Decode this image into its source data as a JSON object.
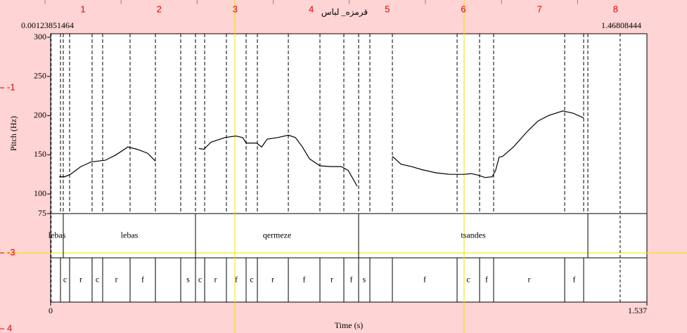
{
  "chart_data": {
    "type": "line",
    "title": "قرمزه_ لباس",
    "ruler": {
      "top": [
        1,
        2,
        3,
        4,
        5,
        6,
        7,
        8
      ],
      "left": [
        -1,
        -3,
        4
      ]
    },
    "selection": [
      0.00123851464,
      1.46808444
    ],
    "ylabel": "Pitch (Hz)",
    "xlabel": "Time (s)",
    "xlim": [
      0,
      1.537
    ],
    "xticks": [
      0,
      1.537
    ],
    "ylim": [
      75,
      300
    ],
    "yticks": [
      75,
      100,
      150,
      200,
      250,
      300
    ],
    "x": [
      0.022,
      0.036,
      0.051,
      0.078,
      0.105,
      0.141,
      0.169,
      0.199,
      0.223,
      0.25,
      0.27,
      null,
      0.382,
      0.395,
      0.413,
      0.449,
      0.477,
      0.495,
      0.504,
      0.531,
      0.544,
      0.558,
      0.585,
      0.613,
      0.631,
      0.649,
      0.667,
      0.694,
      0.721,
      0.749,
      0.767,
      0.79,
      null,
      0.881,
      0.903,
      0.93,
      0.957,
      0.993,
      1.03,
      1.066,
      1.084,
      1.102,
      1.12,
      1.138,
      1.147,
      1.156,
      1.165,
      1.193,
      1.229,
      1.256,
      1.283,
      1.32,
      1.347,
      1.374
    ],
    "values": [
      122,
      122,
      125,
      135,
      141,
      143,
      150,
      160,
      157,
      152,
      142,
      null,
      158,
      157,
      166,
      172,
      174,
      172,
      165,
      165,
      160,
      170,
      172,
      175,
      172,
      160,
      145,
      136,
      135,
      135,
      130,
      110,
      null,
      148,
      138,
      135,
      131,
      127,
      125,
      125,
      126,
      124,
      121,
      122,
      130,
      147,
      148,
      160,
      180,
      193,
      200,
      206,
      203,
      197
    ],
    "color": "#000000",
    "words": [
      {
        "xmin": 0,
        "xmax": 0.0326,
        "text": "lebas"
      },
      {
        "xmin": 0.0326,
        "xmax": 0.3734,
        "text": "lebas"
      },
      {
        "xmin": 0.3734,
        "xmax": 0.7939,
        "text": "qermeze"
      },
      {
        "xmin": 0.7939,
        "xmax": 1.3848,
        "text": "tsandes"
      },
      {
        "xmin": 1.3848,
        "xmax": 1.537
      }
    ],
    "segments": [
      {
        "xmin": 0,
        "xmax": 0.0254
      },
      {
        "xmin": 0.0254,
        "xmax": 0.0489,
        "text": "c"
      },
      {
        "xmin": 0.0489,
        "xmax": 0.1069,
        "text": "r"
      },
      {
        "xmin": 0.1069,
        "xmax": 0.1341,
        "text": "c"
      },
      {
        "xmin": 0.1341,
        "xmax": 0.2048,
        "text": "r"
      },
      {
        "xmin": 0.2048,
        "xmax": 0.2701,
        "text": "f"
      },
      {
        "xmin": 0.2701,
        "xmax": 0.3353
      },
      {
        "xmin": 0.3353,
        "xmax": 0.3734,
        "text": "s"
      },
      {
        "xmin": 0.3734,
        "xmax": 0.397,
        "text": "c"
      },
      {
        "xmin": 0.397,
        "xmax": 0.4531,
        "text": "r"
      },
      {
        "xmin": 0.4531,
        "xmax": 0.5039,
        "text": "f"
      },
      {
        "xmin": 0.5039,
        "xmax": 0.5329,
        "text": "c"
      },
      {
        "xmin": 0.5329,
        "xmax": 0.6127,
        "text": "r"
      },
      {
        "xmin": 0.6127,
        "xmax": 0.6942,
        "text": "f"
      },
      {
        "xmin": 0.6942,
        "xmax": 0.7558,
        "text": "r"
      },
      {
        "xmin": 0.7558,
        "xmax": 0.7939,
        "text": "f"
      },
      {
        "xmin": 0.7939,
        "xmax": 0.8229,
        "text": "s"
      },
      {
        "xmin": 0.8229,
        "xmax": 0.8809
      },
      {
        "xmin": 0.8809,
        "xmax": 1.0477,
        "text": "f"
      },
      {
        "xmin": 1.0477,
        "xmax": 1.1057,
        "text": "c"
      },
      {
        "xmin": 1.1057,
        "xmax": 1.1419,
        "text": "f"
      },
      {
        "xmin": 1.1419,
        "xmax": 1.325,
        "text": "r"
      },
      {
        "xmin": 1.325,
        "xmax": 1.3739,
        "text": "f"
      },
      {
        "xmin": 1.3739,
        "xmax": 1.537
      }
    ]
  }
}
